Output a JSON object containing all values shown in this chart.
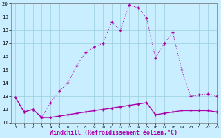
{
  "xlabel": "Windchill (Refroidissement éolien,°C)",
  "line1_x": [
    0,
    1,
    2,
    3,
    4,
    5,
    6,
    7,
    8,
    9,
    10,
    11,
    12,
    13,
    14,
    15,
    16,
    17,
    18,
    19,
    20,
    21,
    22,
    23
  ],
  "line1_y": [
    12.9,
    11.8,
    12.0,
    11.4,
    11.4,
    11.5,
    11.6,
    11.7,
    11.8,
    11.9,
    12.0,
    12.1,
    12.2,
    12.3,
    12.4,
    12.5,
    11.6,
    11.7,
    11.8,
    11.9,
    11.9,
    11.9,
    11.9,
    11.8
  ],
  "line2_x": [
    0,
    1,
    2,
    3,
    4,
    5,
    6,
    7,
    8,
    9,
    10,
    11,
    12,
    13,
    14,
    15,
    16,
    17,
    18,
    19,
    20,
    21,
    22,
    23
  ],
  "line2_y": [
    12.9,
    11.8,
    12.0,
    11.4,
    12.5,
    13.4,
    14.0,
    15.3,
    16.3,
    16.7,
    17.0,
    18.6,
    18.0,
    19.9,
    19.7,
    18.9,
    15.9,
    17.0,
    17.8,
    15.0,
    13.0,
    13.1,
    13.2,
    13.0
  ],
  "line_color": "#aa00aa",
  "bg_color": "#c8eeff",
  "grid_color": "#99ccdd",
  "ylim": [
    11,
    20
  ],
  "xlim": [
    -0.5,
    23
  ],
  "yticks": [
    11,
    12,
    13,
    14,
    15,
    16,
    17,
    18,
    19,
    20
  ],
  "xticks": [
    0,
    1,
    2,
    3,
    4,
    5,
    6,
    7,
    8,
    9,
    10,
    11,
    12,
    13,
    14,
    15,
    16,
    17,
    18,
    19,
    20,
    21,
    22,
    23
  ],
  "ylabel_fontsize": 5,
  "xlabel_fontsize": 6,
  "tick_fontsize": 5
}
